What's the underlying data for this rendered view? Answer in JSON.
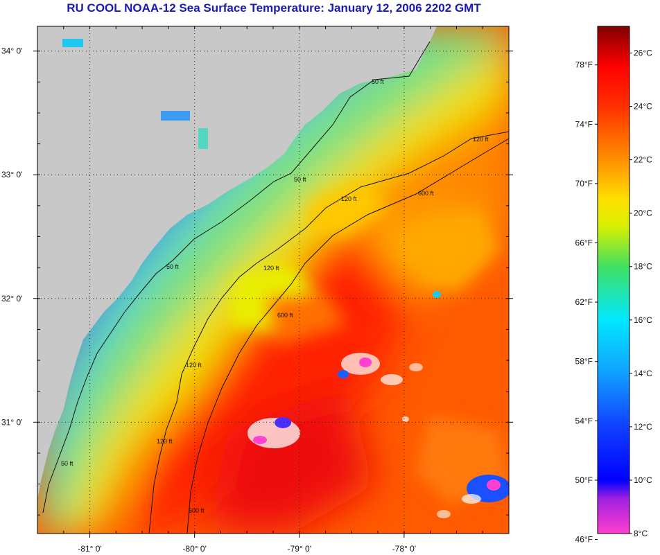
{
  "title": "RU COOL  NOAA-12  Sea Surface Temperature:  January 12, 2006 2202 GMT",
  "map": {
    "lon_range": [
      -81.5,
      -77.0
    ],
    "lat_range": [
      30.1,
      34.2
    ],
    "lat_ticks": [
      {
        "value": 34.0,
        "label": "34° 0'"
      },
      {
        "value": 33.0,
        "label": "33° 0'"
      },
      {
        "value": 32.0,
        "label": "32° 0'"
      },
      {
        "value": 31.0,
        "label": "31° 0'"
      }
    ],
    "lon_ticks": [
      {
        "value": -81.0,
        "label": "-81° 0'"
      },
      {
        "value": -80.0,
        "label": "-80° 0'"
      },
      {
        "value": -79.0,
        "label": "-79° 0'"
      },
      {
        "value": -78.0,
        "label": "-78° 0'"
      }
    ],
    "grid": "dotted",
    "land_color": "#c8c8c8",
    "contours": [
      {
        "label": "50 ft"
      },
      {
        "label": "120 ft"
      },
      {
        "label": "600 ft"
      }
    ]
  },
  "colorbar": {
    "range_c": [
      8,
      27
    ],
    "celsius_ticks": [
      {
        "value": 26,
        "label": "26°C"
      },
      {
        "value": 24,
        "label": "24°C"
      },
      {
        "value": 22,
        "label": "22°C"
      },
      {
        "value": 20,
        "label": "20°C"
      },
      {
        "value": 18,
        "label": "18°C"
      },
      {
        "value": 16,
        "label": "16°C"
      },
      {
        "value": 14,
        "label": "14°C"
      },
      {
        "value": 12,
        "label": "12°C"
      },
      {
        "value": 10,
        "label": "10°C"
      },
      {
        "value": 8,
        "label": "8°C"
      }
    ],
    "fahrenheit_ticks": [
      {
        "value": 78,
        "label": "78°F"
      },
      {
        "value": 74,
        "label": "74°F"
      },
      {
        "value": 70,
        "label": "70°F"
      },
      {
        "value": 66,
        "label": "66°F"
      },
      {
        "value": 62,
        "label": "62°F"
      },
      {
        "value": 58,
        "label": "58°F"
      },
      {
        "value": 54,
        "label": "54°F"
      },
      {
        "value": 50,
        "label": "50°F"
      },
      {
        "value": 46,
        "label": "46°F"
      }
    ],
    "stops": [
      {
        "c": 8,
        "color": "#ff40d0"
      },
      {
        "c": 9.3,
        "color": "#a020e0"
      },
      {
        "c": 10,
        "color": "#0000ff"
      },
      {
        "c": 12,
        "color": "#1040ff"
      },
      {
        "c": 14,
        "color": "#10a0ff"
      },
      {
        "c": 16,
        "color": "#00e8ff"
      },
      {
        "c": 18,
        "color": "#40e060"
      },
      {
        "c": 19.5,
        "color": "#d8f000"
      },
      {
        "c": 20.5,
        "color": "#ffe000"
      },
      {
        "c": 22,
        "color": "#ff9000"
      },
      {
        "c": 24,
        "color": "#ff3000"
      },
      {
        "c": 25.5,
        "color": "#ff0000"
      },
      {
        "c": 27,
        "color": "#800000"
      }
    ]
  }
}
